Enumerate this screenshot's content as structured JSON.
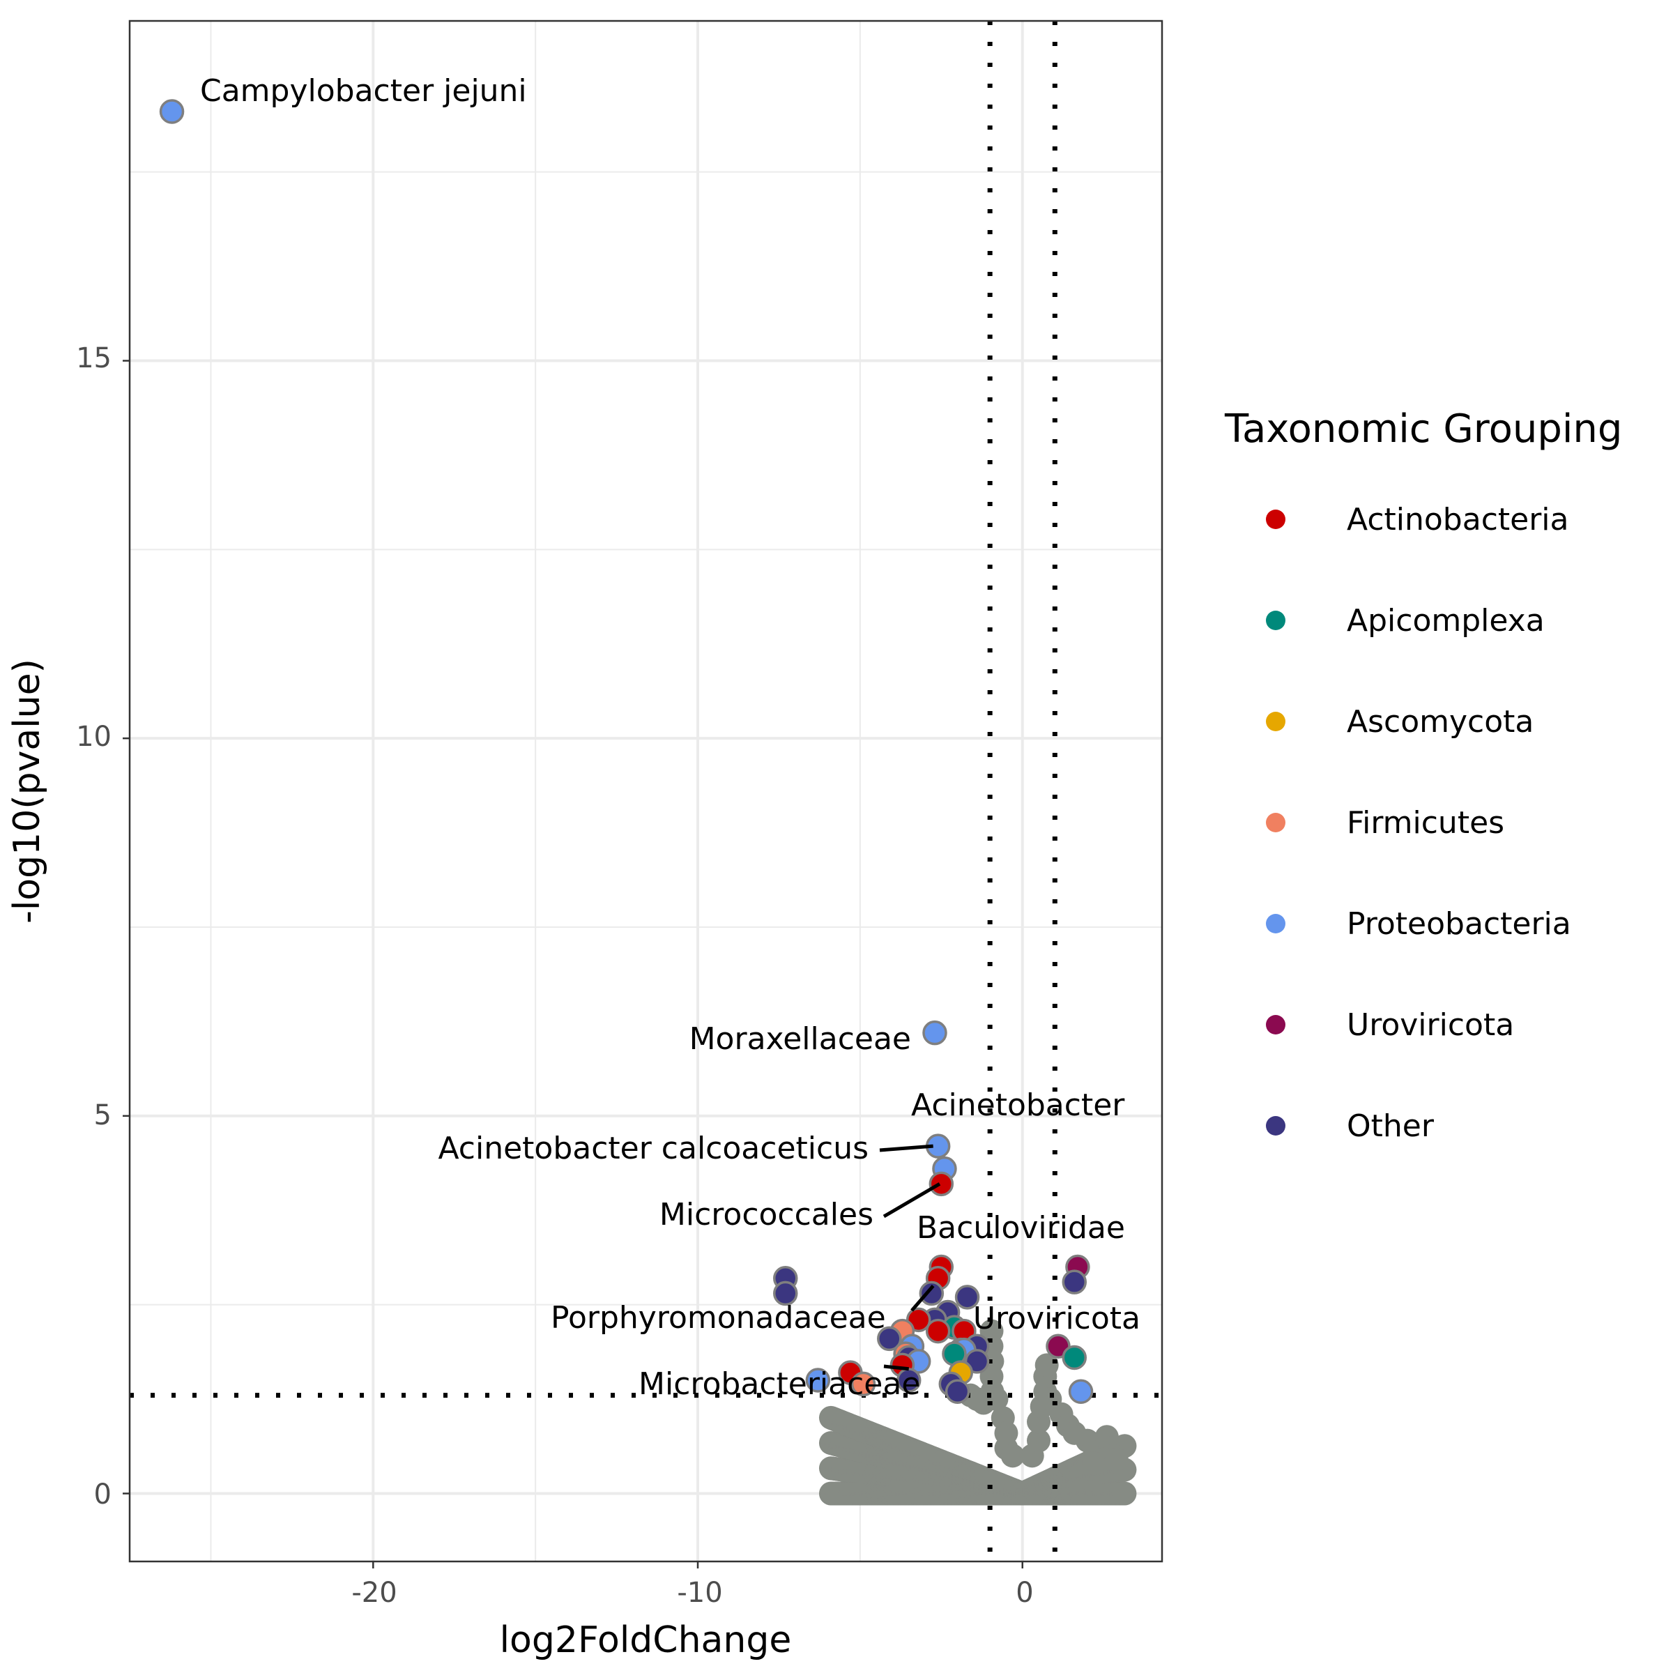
{
  "chart_data": {
    "type": "scatter",
    "xlabel": "log2FoldChange",
    "ylabel": "-log10(pvalue)",
    "xlim": [
      -27.5,
      4.3
    ],
    "ylim": [
      -0.9,
      19.5
    ],
    "x_ticks": [
      -20,
      -10,
      0
    ],
    "x_tick_labels": [
      "-20",
      "-10",
      "0"
    ],
    "y_ticks": [
      0,
      5,
      10,
      15
    ],
    "y_tick_labels": [
      "0",
      "5",
      "10",
      "15"
    ],
    "grid": true,
    "thresholds": {
      "vertical_x": [
        -1,
        1
      ],
      "horizontal_y": 1.3
    },
    "legend": {
      "title": "Taxonomic Grouping",
      "position": "right",
      "entries": [
        {
          "name": "Actinobacteria",
          "color": "#cc0000"
        },
        {
          "name": "Apicomplexa",
          "color": "#00897b"
        },
        {
          "name": "Ascomycota",
          "color": "#e6a700"
        },
        {
          "name": "Firmicutes",
          "color": "#f08060"
        },
        {
          "name": "Proteobacteria",
          "color": "#6495ed"
        },
        {
          "name": "Uroviricota",
          "color": "#8b0a50"
        },
        {
          "name": "Other",
          "color": "#3b3680"
        }
      ]
    },
    "nonsignificant_color": "#868b84",
    "significant_points": [
      {
        "x": -26.2,
        "y": 18.3,
        "group": "Proteobacteria"
      },
      {
        "x": -2.7,
        "y": 6.1,
        "group": "Proteobacteria"
      },
      {
        "x": -2.6,
        "y": 4.6,
        "group": "Proteobacteria"
      },
      {
        "x": -2.4,
        "y": 4.3,
        "group": "Proteobacteria"
      },
      {
        "x": -2.5,
        "y": 4.1,
        "group": "Actinobacteria"
      },
      {
        "x": -7.3,
        "y": 2.85,
        "group": "Other"
      },
      {
        "x": -7.3,
        "y": 2.65,
        "group": "Other"
      },
      {
        "x": -2.5,
        "y": 3.0,
        "group": "Actinobacteria"
      },
      {
        "x": -2.6,
        "y": 2.85,
        "group": "Actinobacteria"
      },
      {
        "x": -2.8,
        "y": 2.65,
        "group": "Other"
      },
      {
        "x": -1.7,
        "y": 2.6,
        "group": "Other"
      },
      {
        "x": -2.3,
        "y": 2.4,
        "group": "Other"
      },
      {
        "x": -2.7,
        "y": 2.3,
        "group": "Other"
      },
      {
        "x": -3.2,
        "y": 2.3,
        "group": "Actinobacteria"
      },
      {
        "x": -2.1,
        "y": 2.2,
        "group": "Apicomplexa"
      },
      {
        "x": -2.6,
        "y": 2.15,
        "group": "Actinobacteria"
      },
      {
        "x": -1.8,
        "y": 2.15,
        "group": "Actinobacteria"
      },
      {
        "x": -3.7,
        "y": 2.15,
        "group": "Firmicutes"
      },
      {
        "x": -4.1,
        "y": 2.05,
        "group": "Other"
      },
      {
        "x": -3.4,
        "y": 1.95,
        "group": "Proteobacteria"
      },
      {
        "x": -1.4,
        "y": 1.95,
        "group": "Other"
      },
      {
        "x": -1.9,
        "y": 1.9,
        "group": "Ascomycota"
      },
      {
        "x": -1.8,
        "y": 1.9,
        "group": "Proteobacteria"
      },
      {
        "x": -2.1,
        "y": 1.85,
        "group": "Apicomplexa"
      },
      {
        "x": -3.6,
        "y": 1.85,
        "group": "Firmicutes"
      },
      {
        "x": -3.5,
        "y": 1.8,
        "group": "Other"
      },
      {
        "x": -3.2,
        "y": 1.75,
        "group": "Proteobacteria"
      },
      {
        "x": -1.4,
        "y": 1.75,
        "group": "Other"
      },
      {
        "x": -3.7,
        "y": 1.7,
        "group": "Actinobacteria"
      },
      {
        "x": -1.9,
        "y": 1.6,
        "group": "Ascomycota"
      },
      {
        "x": -5.3,
        "y": 1.6,
        "group": "Actinobacteria"
      },
      {
        "x": -6.3,
        "y": 1.5,
        "group": "Proteobacteria"
      },
      {
        "x": -3.5,
        "y": 1.5,
        "group": "Other"
      },
      {
        "x": -4.9,
        "y": 1.45,
        "group": "Firmicutes"
      },
      {
        "x": -2.2,
        "y": 1.45,
        "group": "Other"
      },
      {
        "x": -2.0,
        "y": 1.35,
        "group": "Other"
      },
      {
        "x": 1.1,
        "y": 1.95,
        "group": "Uroviricota"
      },
      {
        "x": 1.7,
        "y": 3.0,
        "group": "Uroviricota"
      },
      {
        "x": 1.6,
        "y": 2.8,
        "group": "Other"
      },
      {
        "x": 1.6,
        "y": 1.8,
        "group": "Apicomplexa"
      },
      {
        "x": 1.8,
        "y": 1.35,
        "group": "Proteobacteria"
      }
    ],
    "annotations": [
      {
        "text": "Campylobacter jejuni",
        "x": -26.2,
        "y": 18.3
      },
      {
        "text": "Moraxellaceae",
        "x": -2.7,
        "y": 6.1
      },
      {
        "text": "Acinetobacter",
        "x": -2.4,
        "y": 4.3
      },
      {
        "text": "Acinetobacter calcoaceticus",
        "x": -2.6,
        "y": 4.6
      },
      {
        "text": "Micrococcales",
        "x": -2.5,
        "y": 4.1
      },
      {
        "text": "Baculoviridae",
        "x": -2.5,
        "y": 3.0
      },
      {
        "text": "Porphyromonadaceae",
        "x": -2.8,
        "y": 2.65
      },
      {
        "text": "Uroviricota",
        "x": 1.1,
        "y": 1.95
      },
      {
        "text": "Microbacteriaceae",
        "x": -3.5,
        "y": 1.5
      }
    ]
  }
}
